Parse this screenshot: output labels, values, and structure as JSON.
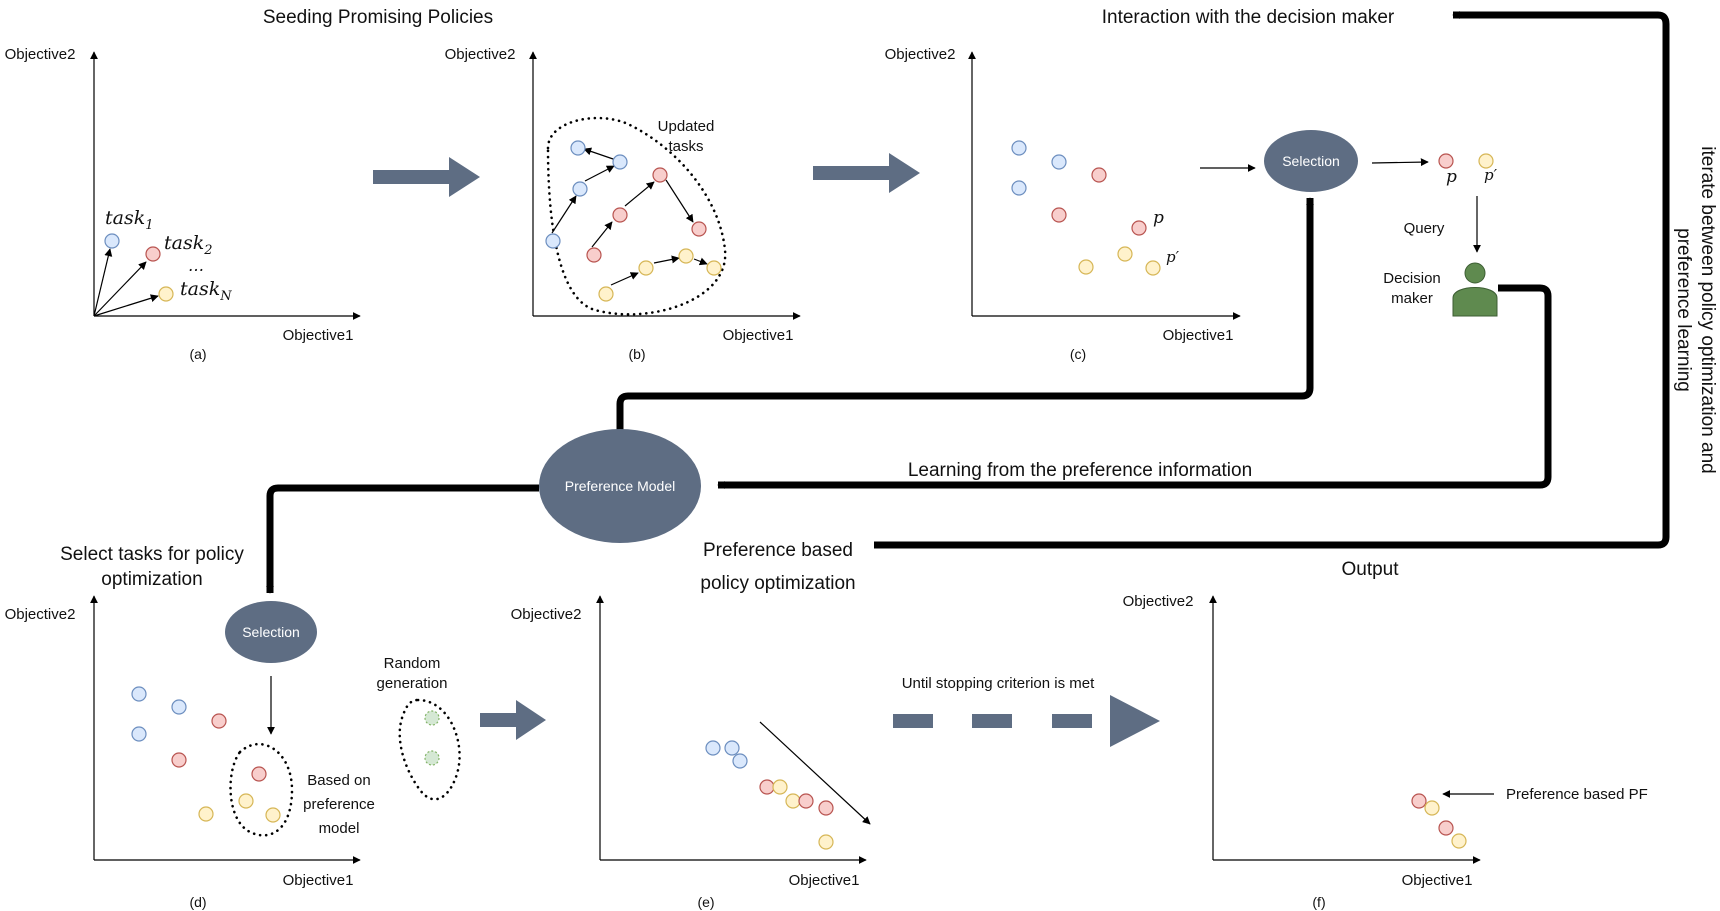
{
  "headings": {
    "seeding": "Seeding Promising Policies",
    "interaction": "Interaction with the decision maker",
    "iterate_line1": "iterate between policy optimization and",
    "iterate_line2": "preference learning",
    "learning": "Learning from the preference information",
    "select_line1": "Select tasks for policy",
    "select_line2": "optimization",
    "pref_opt_line1": "Preference based",
    "pref_opt_line2": "policy optimization",
    "output": "Output",
    "until": "Until stopping criterion is met"
  },
  "axes": {
    "x_label": "Objective1",
    "y_label": "Objective2"
  },
  "panels": {
    "a": "(a)",
    "b": "(b)",
    "c": "(c)",
    "d": "(d)",
    "e": "(e)",
    "f": "(f)"
  },
  "labels": {
    "task1": "task",
    "task1_sub": "1",
    "task2": "task",
    "task2_sub": "2",
    "taskN": "task",
    "taskN_sub": "N",
    "ellipsis": "…",
    "updated_line1": "Updated",
    "updated_line2": "tasks",
    "p": "p",
    "p_prime": "p′",
    "selection": "Selection",
    "query": "Query",
    "decision_line1": "Decision",
    "decision_line2": "maker",
    "preference_model": "Preference Model",
    "random_line1": "Random",
    "random_line2": "generation",
    "based_line1": "Based on",
    "based_line2": "preference",
    "based_line3": "model",
    "pref_pf": "Preference based PF"
  },
  "colors": {
    "blue_fill": "#dae8fc",
    "red_fill": "#f8cecc",
    "yellow_fill": "#fff2cc",
    "green_fill": "#d5e8d4",
    "node_fill": "#5e6d83",
    "person_fill": "#5f8a4f"
  },
  "icons": {
    "decision_maker": "person-icon"
  }
}
